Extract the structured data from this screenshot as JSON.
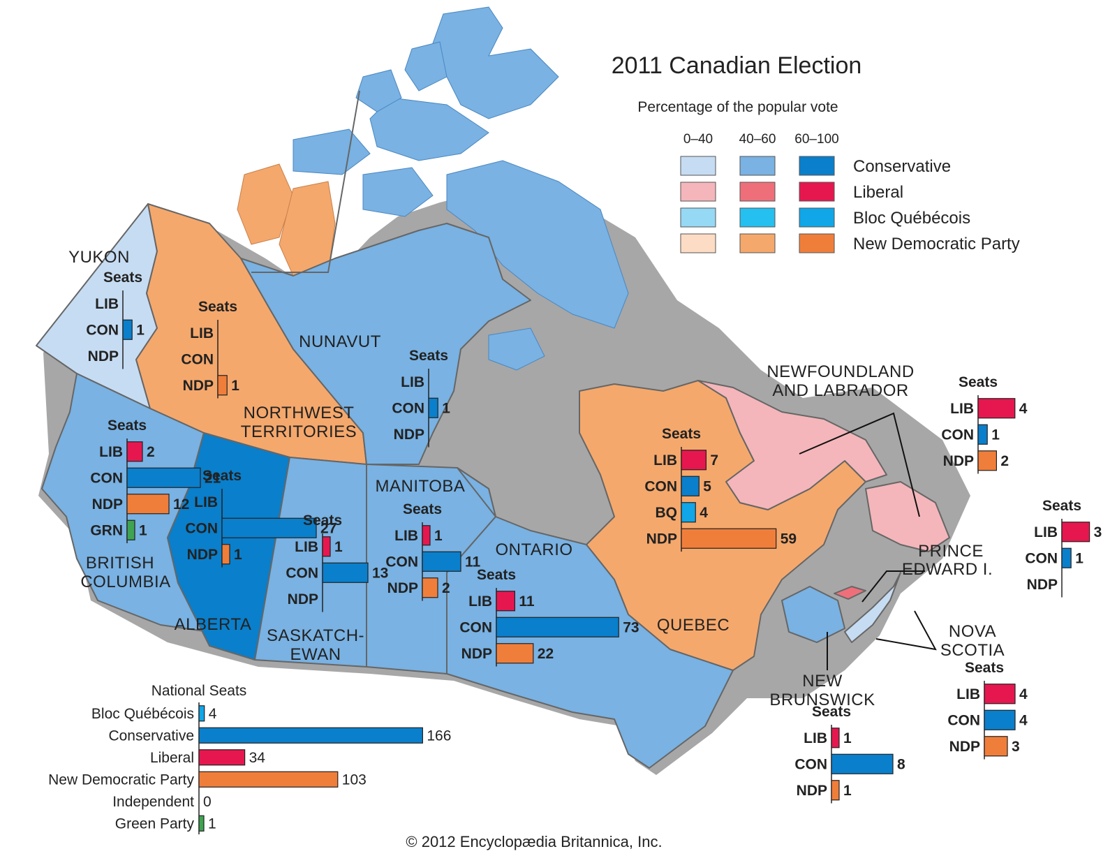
{
  "title": "2011 Canadian Election",
  "legend": {
    "heading": "Percentage of the popular vote",
    "ranges": [
      "0–40",
      "40–60",
      "60–100"
    ],
    "parties": [
      {
        "name": "Conservative",
        "colors": [
          "#c6dcf3",
          "#79b2e3",
          "#0a7fcb"
        ]
      },
      {
        "name": "Liberal",
        "colors": [
          "#f4b6ba",
          "#ee6f7a",
          "#e6174f"
        ]
      },
      {
        "name": "Bloc Québécois",
        "colors": [
          "#95d9f5",
          "#25c0ef",
          "#10a6e8"
        ]
      },
      {
        "name": "New Democratic Party",
        "colors": [
          "#fcdcc4",
          "#f5a86c",
          "#f07e3b"
        ]
      }
    ]
  },
  "colors": {
    "CON": "#0a7fcb",
    "LIB": "#e6174f",
    "BQ": "#10a6e8",
    "NDP": "#f07e3b",
    "GRN": "#3ea452",
    "IND": "#888888"
  },
  "map_colors": {
    "con_light": "#c6dcf3",
    "con_mid": "#79b2e3",
    "con_dark": "#0a7fcb",
    "lib_light": "#f4b6ba",
    "ndp_mid": "#f5a86c",
    "shadow": "#a7a7a7",
    "border": "#666666"
  },
  "regions": {
    "yukon": {
      "name": "YUKON",
      "seats_label": "Seats",
      "rows": [
        {
          "code": "LIB",
          "seats": 0
        },
        {
          "code": "CON",
          "seats": 1
        },
        {
          "code": "NDP",
          "seats": 0
        }
      ]
    },
    "nwt": {
      "name_line1": "NORTHWEST",
      "name_line2": "TERRITORIES",
      "seats_label": "Seats",
      "rows": [
        {
          "code": "LIB",
          "seats": 0
        },
        {
          "code": "CON",
          "seats": 0
        },
        {
          "code": "NDP",
          "seats": 1
        }
      ]
    },
    "nunavut": {
      "name": "NUNAVUT",
      "seats_label": "Seats",
      "rows": [
        {
          "code": "LIB",
          "seats": 0
        },
        {
          "code": "CON",
          "seats": 1
        },
        {
          "code": "NDP",
          "seats": 0
        }
      ]
    },
    "bc": {
      "name_line1": "BRITISH",
      "name_line2": "COLUMBIA",
      "seats_label": "Seats",
      "rows": [
        {
          "code": "LIB",
          "seats": 2
        },
        {
          "code": "CON",
          "seats": 21
        },
        {
          "code": "NDP",
          "seats": 12
        },
        {
          "code": "GRN",
          "seats": 1
        }
      ]
    },
    "alberta": {
      "name": "ALBERTA",
      "seats_label": "Seats",
      "rows": [
        {
          "code": "LIB",
          "seats": 0
        },
        {
          "code": "CON",
          "seats": 27
        },
        {
          "code": "NDP",
          "seats": 1
        }
      ]
    },
    "saskatchewan": {
      "name_line1": "SASKATCH-",
      "name_line2": "EWAN",
      "seats_label": "Seats",
      "rows": [
        {
          "code": "LIB",
          "seats": 1
        },
        {
          "code": "CON",
          "seats": 13
        },
        {
          "code": "NDP",
          "seats": 0
        }
      ]
    },
    "manitoba": {
      "name": "MANITOBA",
      "seats_label": "Seats",
      "rows": [
        {
          "code": "LIB",
          "seats": 1
        },
        {
          "code": "CON",
          "seats": 11
        },
        {
          "code": "NDP",
          "seats": 2
        }
      ]
    },
    "ontario": {
      "name": "ONTARIO",
      "seats_label": "Seats",
      "rows": [
        {
          "code": "LIB",
          "seats": 11
        },
        {
          "code": "CON",
          "seats": 73
        },
        {
          "code": "NDP",
          "seats": 22
        }
      ]
    },
    "quebec": {
      "name": "QUEBEC",
      "seats_label": "Seats",
      "rows": [
        {
          "code": "LIB",
          "seats": 7
        },
        {
          "code": "CON",
          "seats": 5
        },
        {
          "code": "BQ",
          "seats": 4
        },
        {
          "code": "NDP",
          "seats": 59
        }
      ]
    },
    "nl": {
      "name_line1": "NEWFOUNDLAND",
      "name_line2": "AND LABRADOR",
      "seats_label": "Seats",
      "rows": [
        {
          "code": "LIB",
          "seats": 4
        },
        {
          "code": "CON",
          "seats": 1
        },
        {
          "code": "NDP",
          "seats": 2
        }
      ]
    },
    "pei": {
      "name_line1": "PRINCE",
      "name_line2": "EDWARD I.",
      "seats_label": "Seats",
      "rows": [
        {
          "code": "LIB",
          "seats": 3
        },
        {
          "code": "CON",
          "seats": 1
        },
        {
          "code": "NDP",
          "seats": 0
        }
      ]
    },
    "ns": {
      "name_line1": "NOVA",
      "name_line2": "SCOTIA",
      "seats_label": "Seats",
      "rows": [
        {
          "code": "LIB",
          "seats": 4
        },
        {
          "code": "CON",
          "seats": 4
        },
        {
          "code": "NDP",
          "seats": 3
        }
      ]
    },
    "nb": {
      "name_line1": "NEW",
      "name_line2": "BRUNSWICK",
      "seats_label": "Seats",
      "rows": [
        {
          "code": "LIB",
          "seats": 1
        },
        {
          "code": "CON",
          "seats": 8
        },
        {
          "code": "NDP",
          "seats": 1
        }
      ]
    }
  },
  "national": {
    "heading": "National Seats",
    "rows": [
      {
        "label": "Bloc Québécois",
        "code": "BQ",
        "seats": 4
      },
      {
        "label": "Conservative",
        "code": "CON",
        "seats": 166
      },
      {
        "label": "Liberal",
        "code": "LIB",
        "seats": 34
      },
      {
        "label": "New Democratic Party",
        "code": "NDP",
        "seats": 103
      },
      {
        "label": "Independent",
        "code": "IND",
        "seats": 0
      },
      {
        "label": "Green Party",
        "code": "GRN",
        "seats": 1
      }
    ]
  },
  "copyright": "© 2012 Encyclopædia Britannica, Inc."
}
